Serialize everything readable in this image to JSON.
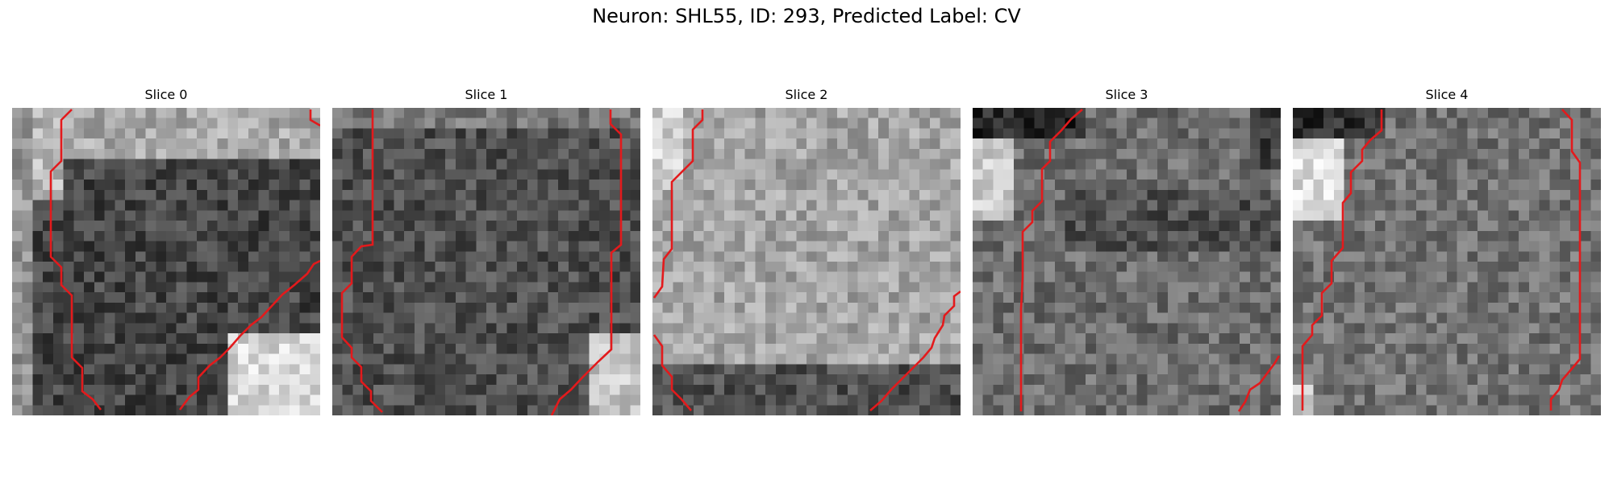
{
  "figure": {
    "title": "Neuron: SHL55, ID: 293, Predicted Label: CV",
    "contour_color": "#e31a1c",
    "grid_size": 30,
    "colormap": "gray"
  },
  "panels": [
    {
      "title": "Slice 0",
      "brightness": "dark cell body, bright edges at top-left and bottom-right"
    },
    {
      "title": "Slice 1",
      "brightness": "dark cell body, bright corner at bottom-right"
    },
    {
      "title": "Slice 2",
      "brightness": "bright textured interior, dark bottom band"
    },
    {
      "title": "Slice 3",
      "brightness": "mid-gray interior, dark top-left, bright left edge"
    },
    {
      "title": "Slice 4",
      "brightness": "mid-gray interior, bright left region"
    }
  ]
}
